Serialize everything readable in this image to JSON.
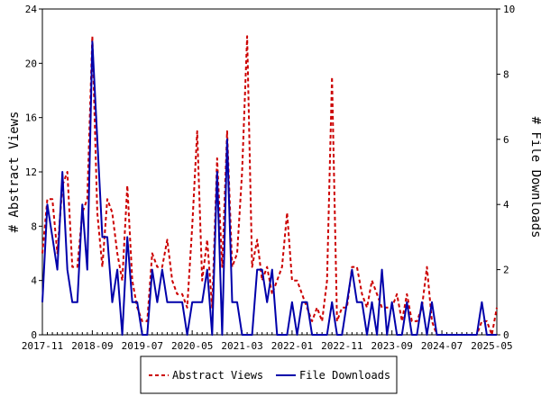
{
  "chart_data": {
    "type": "line",
    "ylabel_left": "# Abstract Views",
    "ylabel_right": "# File Downloads",
    "x_tick_labels": [
      "2017-11",
      "2018-09",
      "2019-07",
      "2020-05",
      "2021-03",
      "2022-01",
      "2022-11",
      "2023-09",
      "2024-07",
      "2025-05"
    ],
    "ylim_left": [
      0,
      24
    ],
    "yticks_left": [
      0,
      4,
      8,
      12,
      16,
      20,
      24
    ],
    "ylim_right": [
      0,
      10
    ],
    "yticks_right": [
      0,
      2,
      4,
      6,
      8,
      10
    ],
    "x_range_months": [
      0,
      91
    ],
    "legend": {
      "position": "bottom-center"
    },
    "series": [
      {
        "name": "Abstract Views",
        "axis": "left",
        "color": "#cc0000",
        "style": "dashed",
        "values": [
          [
            0,
            6
          ],
          [
            1,
            10
          ],
          [
            2,
            10
          ],
          [
            3,
            6
          ],
          [
            4,
            11
          ],
          [
            5,
            12
          ],
          [
            6,
            5
          ],
          [
            7,
            5
          ],
          [
            8,
            9
          ],
          [
            9,
            10
          ],
          [
            10,
            22
          ],
          [
            11,
            9
          ],
          [
            12,
            5
          ],
          [
            13,
            10
          ],
          [
            14,
            9
          ],
          [
            15,
            6
          ],
          [
            16,
            4
          ],
          [
            17,
            11
          ],
          [
            18,
            4
          ],
          [
            19,
            2
          ],
          [
            20,
            1
          ],
          [
            21,
            1
          ],
          [
            22,
            6
          ],
          [
            23,
            5
          ],
          [
            24,
            5
          ],
          [
            25,
            7
          ],
          [
            26,
            4
          ],
          [
            27,
            3
          ],
          [
            28,
            3
          ],
          [
            29,
            2
          ],
          [
            30,
            8
          ],
          [
            31,
            15
          ],
          [
            32,
            4
          ],
          [
            33,
            7
          ],
          [
            34,
            2
          ],
          [
            35,
            13
          ],
          [
            36,
            5
          ],
          [
            37,
            15
          ],
          [
            38,
            5
          ],
          [
            39,
            6
          ],
          [
            40,
            12
          ],
          [
            41,
            22
          ],
          [
            42,
            5
          ],
          [
            43,
            7
          ],
          [
            44,
            4
          ],
          [
            45,
            5
          ],
          [
            46,
            3
          ],
          [
            47,
            4
          ],
          [
            48,
            5
          ],
          [
            49,
            9
          ],
          [
            50,
            4
          ],
          [
            51,
            4
          ],
          [
            52,
            3
          ],
          [
            53,
            2
          ],
          [
            54,
            1
          ],
          [
            55,
            2
          ],
          [
            56,
            1
          ],
          [
            57,
            4
          ],
          [
            58,
            19
          ],
          [
            59,
            1
          ],
          [
            60,
            2
          ],
          [
            61,
            2
          ],
          [
            62,
            5
          ],
          [
            63,
            5
          ],
          [
            64,
            3
          ],
          [
            65,
            2
          ],
          [
            66,
            4
          ],
          [
            67,
            3
          ],
          [
            68,
            2
          ],
          [
            69,
            2
          ],
          [
            70,
            2
          ],
          [
            71,
            3
          ],
          [
            72,
            1
          ],
          [
            73,
            3
          ],
          [
            74,
            1
          ],
          [
            75,
            1
          ],
          [
            76,
            2
          ],
          [
            77,
            5
          ],
          [
            78,
            1
          ],
          [
            79,
            0
          ],
          [
            80,
            0
          ],
          [
            81,
            0
          ],
          [
            82,
            0
          ],
          [
            83,
            0
          ],
          [
            84,
            0
          ],
          [
            85,
            0
          ],
          [
            86,
            0
          ],
          [
            87,
            0
          ],
          [
            88,
            1
          ],
          [
            89,
            1
          ],
          [
            90,
            0
          ],
          [
            91,
            2
          ]
        ]
      },
      {
        "name": "File Downloads",
        "axis": "right",
        "color": "#0000aa",
        "style": "solid",
        "values": [
          [
            0,
            1
          ],
          [
            1,
            4
          ],
          [
            2,
            3
          ],
          [
            3,
            2
          ],
          [
            4,
            5
          ],
          [
            5,
            2
          ],
          [
            6,
            1
          ],
          [
            7,
            1
          ],
          [
            8,
            4
          ],
          [
            9,
            2
          ],
          [
            10,
            9
          ],
          [
            11,
            6
          ],
          [
            12,
            3
          ],
          [
            13,
            3
          ],
          [
            14,
            1
          ],
          [
            15,
            2
          ],
          [
            16,
            0
          ],
          [
            17,
            3
          ],
          [
            18,
            1
          ],
          [
            19,
            1
          ],
          [
            20,
            0
          ],
          [
            21,
            0
          ],
          [
            22,
            2
          ],
          [
            23,
            1
          ],
          [
            24,
            2
          ],
          [
            25,
            1
          ],
          [
            26,
            1
          ],
          [
            27,
            1
          ],
          [
            28,
            1
          ],
          [
            29,
            0
          ],
          [
            30,
            1
          ],
          [
            31,
            1
          ],
          [
            32,
            1
          ],
          [
            33,
            2
          ],
          [
            34,
            0
          ],
          [
            35,
            5
          ],
          [
            36,
            0
          ],
          [
            37,
            6
          ],
          [
            38,
            1
          ],
          [
            39,
            1
          ],
          [
            40,
            0
          ],
          [
            41,
            0
          ],
          [
            42,
            0
          ],
          [
            43,
            2
          ],
          [
            44,
            2
          ],
          [
            45,
            1
          ],
          [
            46,
            2
          ],
          [
            47,
            0
          ],
          [
            48,
            0
          ],
          [
            49,
            0
          ],
          [
            50,
            1
          ],
          [
            51,
            0
          ],
          [
            52,
            1
          ],
          [
            53,
            1
          ],
          [
            54,
            0
          ],
          [
            55,
            0
          ],
          [
            56,
            0
          ],
          [
            57,
            0
          ],
          [
            58,
            1
          ],
          [
            59,
            0
          ],
          [
            60,
            0
          ],
          [
            61,
            1
          ],
          [
            62,
            2
          ],
          [
            63,
            1
          ],
          [
            64,
            1
          ],
          [
            65,
            0
          ],
          [
            66,
            1
          ],
          [
            67,
            0
          ],
          [
            68,
            2
          ],
          [
            69,
            0
          ],
          [
            70,
            1
          ],
          [
            71,
            0
          ],
          [
            72,
            0
          ],
          [
            73,
            1
          ],
          [
            74,
            0
          ],
          [
            75,
            0
          ],
          [
            76,
            1
          ],
          [
            77,
            0
          ],
          [
            78,
            1
          ],
          [
            79,
            0
          ],
          [
            80,
            0
          ],
          [
            81,
            0
          ],
          [
            82,
            0
          ],
          [
            83,
            0
          ],
          [
            84,
            0
          ],
          [
            85,
            0
          ],
          [
            86,
            0
          ],
          [
            87,
            0
          ],
          [
            88,
            1
          ],
          [
            89,
            0
          ],
          [
            90,
            0
          ],
          [
            91,
            0
          ]
        ]
      }
    ]
  }
}
